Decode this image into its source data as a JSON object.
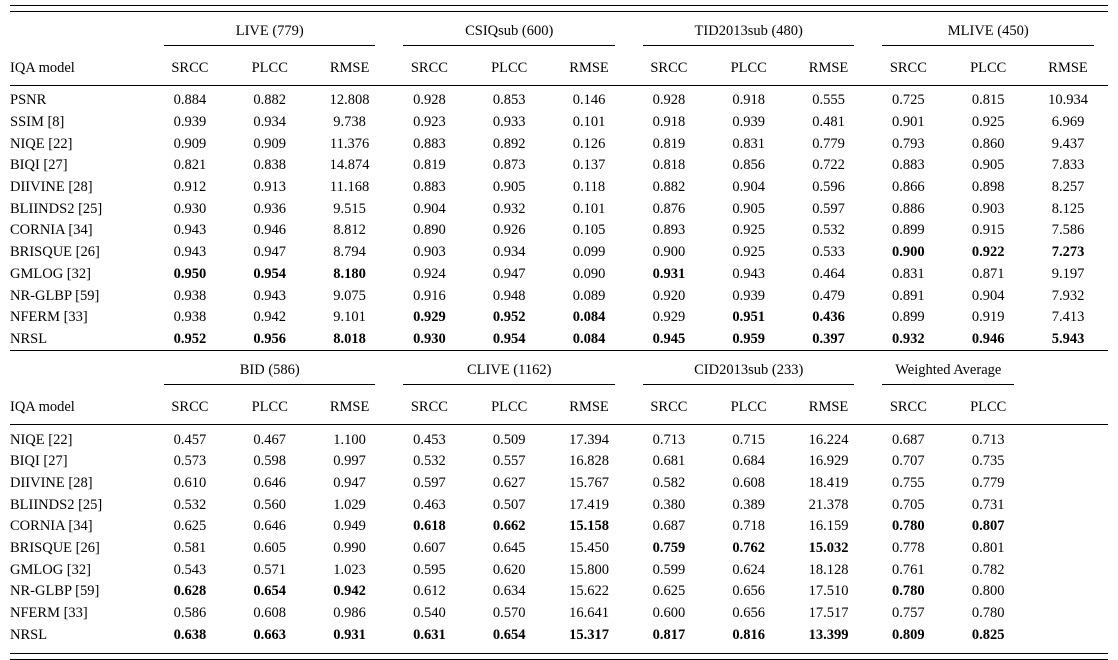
{
  "page": {
    "background": "#ffffff",
    "text_color": "#000000"
  },
  "tables": [
    {
      "model_header": "IQA model",
      "trailing_empty_cols": 0,
      "groups": [
        {
          "name": "LIVE (779)",
          "cols": [
            "SRCC",
            "PLCC",
            "RMSE"
          ]
        },
        {
          "name": "CSIQsub (600)",
          "cols": [
            "SRCC",
            "PLCC",
            "RMSE"
          ]
        },
        {
          "name": "TID2013sub (480)",
          "cols": [
            "SRCC",
            "PLCC",
            "RMSE"
          ]
        },
        {
          "name": "MLIVE (450)",
          "cols": [
            "SRCC",
            "PLCC",
            "RMSE"
          ]
        }
      ],
      "rows": [
        {
          "model": "PSNR",
          "values": [
            "0.884",
            "0.882",
            "12.808",
            "0.928",
            "0.853",
            "0.146",
            "0.928",
            "0.918",
            "0.555",
            "0.725",
            "0.815",
            "10.934"
          ],
          "bold": []
        },
        {
          "model": "SSIM [8]",
          "values": [
            "0.939",
            "0.934",
            "9.738",
            "0.923",
            "0.933",
            "0.101",
            "0.918",
            "0.939",
            "0.481",
            "0.901",
            "0.925",
            "6.969"
          ],
          "bold": []
        },
        {
          "model": "NIQE [22]",
          "values": [
            "0.909",
            "0.909",
            "11.376",
            "0.883",
            "0.892",
            "0.126",
            "0.819",
            "0.831",
            "0.779",
            "0.793",
            "0.860",
            "9.437"
          ],
          "bold": []
        },
        {
          "model": "BIQI [27]",
          "values": [
            "0.821",
            "0.838",
            "14.874",
            "0.819",
            "0.873",
            "0.137",
            "0.818",
            "0.856",
            "0.722",
            "0.883",
            "0.905",
            "7.833"
          ],
          "bold": []
        },
        {
          "model": "DIIVINE [28]",
          "values": [
            "0.912",
            "0.913",
            "11.168",
            "0.883",
            "0.905",
            "0.118",
            "0.882",
            "0.904",
            "0.596",
            "0.866",
            "0.898",
            "8.257"
          ],
          "bold": []
        },
        {
          "model": "BLIINDS2 [25]",
          "values": [
            "0.930",
            "0.936",
            "9.515",
            "0.904",
            "0.932",
            "0.101",
            "0.876",
            "0.905",
            "0.597",
            "0.886",
            "0.903",
            "8.125"
          ],
          "bold": []
        },
        {
          "model": "CORNIA [34]",
          "values": [
            "0.943",
            "0.946",
            "8.812",
            "0.890",
            "0.926",
            "0.105",
            "0.893",
            "0.925",
            "0.532",
            "0.899",
            "0.915",
            "7.586"
          ],
          "bold": []
        },
        {
          "model": "BRISQUE [26]",
          "values": [
            "0.943",
            "0.947",
            "8.794",
            "0.903",
            "0.934",
            "0.099",
            "0.900",
            "0.925",
            "0.533",
            "0.900",
            "0.922",
            "7.273"
          ],
          "bold": [
            9,
            10,
            11
          ]
        },
        {
          "model": "GMLOG [32]",
          "values": [
            "0.950",
            "0.954",
            "8.180",
            "0.924",
            "0.947",
            "0.090",
            "0.931",
            "0.943",
            "0.464",
            "0.831",
            "0.871",
            "9.197"
          ],
          "bold": [
            0,
            1,
            2,
            6
          ]
        },
        {
          "model": "NR-GLBP [59]",
          "values": [
            "0.938",
            "0.943",
            "9.075",
            "0.916",
            "0.948",
            "0.089",
            "0.920",
            "0.939",
            "0.479",
            "0.891",
            "0.904",
            "7.932"
          ],
          "bold": []
        },
        {
          "model": "NFERM [33]",
          "values": [
            "0.938",
            "0.942",
            "9.101",
            "0.929",
            "0.952",
            "0.084",
            "0.929",
            "0.951",
            "0.436",
            "0.899",
            "0.919",
            "7.413"
          ],
          "bold": [
            3,
            4,
            5,
            7,
            8
          ]
        },
        {
          "model": "NRSL",
          "values": [
            "0.952",
            "0.956",
            "8.018",
            "0.930",
            "0.954",
            "0.084",
            "0.945",
            "0.959",
            "0.397",
            "0.932",
            "0.946",
            "5.943"
          ],
          "bold": [
            0,
            1,
            2,
            3,
            4,
            5,
            6,
            7,
            8,
            9,
            10,
            11
          ]
        }
      ]
    },
    {
      "model_header": "IQA model",
      "trailing_empty_cols": 1,
      "groups": [
        {
          "name": "BID (586)",
          "cols": [
            "SRCC",
            "PLCC",
            "RMSE"
          ]
        },
        {
          "name": "CLIVE (1162)",
          "cols": [
            "SRCC",
            "PLCC",
            "RMSE"
          ]
        },
        {
          "name": "CID2013sub (233)",
          "cols": [
            "SRCC",
            "PLCC",
            "RMSE"
          ]
        },
        {
          "name": "Weighted Average",
          "cols": [
            "SRCC",
            "PLCC"
          ]
        }
      ],
      "rows": [
        {
          "model": "NIQE [22]",
          "values": [
            "0.457",
            "0.467",
            "1.100",
            "0.453",
            "0.509",
            "17.394",
            "0.713",
            "0.715",
            "16.224",
            "0.687",
            "0.713"
          ],
          "bold": []
        },
        {
          "model": "BIQI [27]",
          "values": [
            "0.573",
            "0.598",
            "0.997",
            "0.532",
            "0.557",
            "16.828",
            "0.681",
            "0.684",
            "16.929",
            "0.707",
            "0.735"
          ],
          "bold": []
        },
        {
          "model": "DIIVINE [28]",
          "values": [
            "0.610",
            "0.646",
            "0.947",
            "0.597",
            "0.627",
            "15.767",
            "0.582",
            "0.608",
            "18.419",
            "0.755",
            "0.779"
          ],
          "bold": []
        },
        {
          "model": "BLIINDS2 [25]",
          "values": [
            "0.532",
            "0.560",
            "1.029",
            "0.463",
            "0.507",
            "17.419",
            "0.380",
            "0.389",
            "21.378",
            "0.705",
            "0.731"
          ],
          "bold": []
        },
        {
          "model": "CORNIA [34]",
          "values": [
            "0.625",
            "0.646",
            "0.949",
            "0.618",
            "0.662",
            "15.158",
            "0.687",
            "0.718",
            "16.159",
            "0.780",
            "0.807"
          ],
          "bold": [
            3,
            4,
            5,
            9,
            10
          ]
        },
        {
          "model": "BRISQUE [26]",
          "values": [
            "0.581",
            "0.605",
            "0.990",
            "0.607",
            "0.645",
            "15.450",
            "0.759",
            "0.762",
            "15.032",
            "0.778",
            "0.801"
          ],
          "bold": [
            6,
            7,
            8
          ]
        },
        {
          "model": "GMLOG [32]",
          "values": [
            "0.543",
            "0.571",
            "1.023",
            "0.595",
            "0.620",
            "15.800",
            "0.599",
            "0.624",
            "18.128",
            "0.761",
            "0.782"
          ],
          "bold": []
        },
        {
          "model": "NR-GLBP [59]",
          "values": [
            "0.628",
            "0.654",
            "0.942",
            "0.612",
            "0.634",
            "15.622",
            "0.625",
            "0.656",
            "17.510",
            "0.780",
            "0.800"
          ],
          "bold": [
            0,
            1,
            2,
            9
          ]
        },
        {
          "model": "NFERM [33]",
          "values": [
            "0.586",
            "0.608",
            "0.986",
            "0.540",
            "0.570",
            "16.641",
            "0.600",
            "0.656",
            "17.517",
            "0.757",
            "0.780"
          ],
          "bold": []
        },
        {
          "model": "NRSL",
          "values": [
            "0.638",
            "0.663",
            "0.931",
            "0.631",
            "0.654",
            "15.317",
            "0.817",
            "0.816",
            "13.399",
            "0.809",
            "0.825"
          ],
          "bold": [
            0,
            1,
            2,
            3,
            4,
            5,
            6,
            7,
            8,
            9,
            10
          ]
        }
      ]
    }
  ]
}
